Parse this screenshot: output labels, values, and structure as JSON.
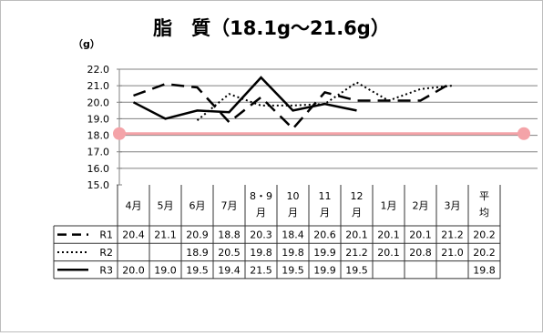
{
  "chart_data": {
    "type": "line",
    "title": "脂　質（18.1g～21.6g）",
    "unit_label": "（g）",
    "ylim": [
      15.0,
      22.0
    ],
    "yticks": [
      "22.0",
      "21.0",
      "20.0",
      "19.0",
      "18.0",
      "17.0",
      "16.0",
      "15.0"
    ],
    "categories": [
      "4月",
      "5月",
      "6月",
      "7月",
      "8・9月",
      "10月",
      "11月",
      "12月",
      "1月",
      "2月",
      "3月",
      "平均"
    ],
    "category_lines": [
      [
        "4月"
      ],
      [
        "5月"
      ],
      [
        "6月"
      ],
      [
        "7月"
      ],
      [
        "8・9",
        "月"
      ],
      [
        "10",
        "月"
      ],
      [
        "11",
        "月"
      ],
      [
        "12",
        "月"
      ],
      [
        "1月"
      ],
      [
        "2月"
      ],
      [
        "3月"
      ],
      [
        "平",
        "均"
      ]
    ],
    "reference_line": {
      "value": 18.1,
      "color": "#f4a3a8"
    },
    "series": [
      {
        "name": "R1",
        "style": "dashed",
        "values": [
          20.4,
          21.1,
          20.9,
          18.8,
          20.3,
          18.4,
          20.6,
          20.1,
          20.1,
          20.1,
          21.2,
          20.2
        ]
      },
      {
        "name": "R2",
        "style": "dotted",
        "values": [
          null,
          null,
          18.9,
          20.5,
          19.8,
          19.8,
          19.9,
          21.2,
          20.1,
          20.8,
          21.0,
          20.2
        ]
      },
      {
        "name": "R3",
        "style": "solid",
        "values": [
          20.0,
          19.0,
          19.5,
          19.4,
          21.5,
          19.5,
          19.9,
          19.5,
          null,
          null,
          null,
          19.8
        ]
      }
    ],
    "grid": true
  }
}
